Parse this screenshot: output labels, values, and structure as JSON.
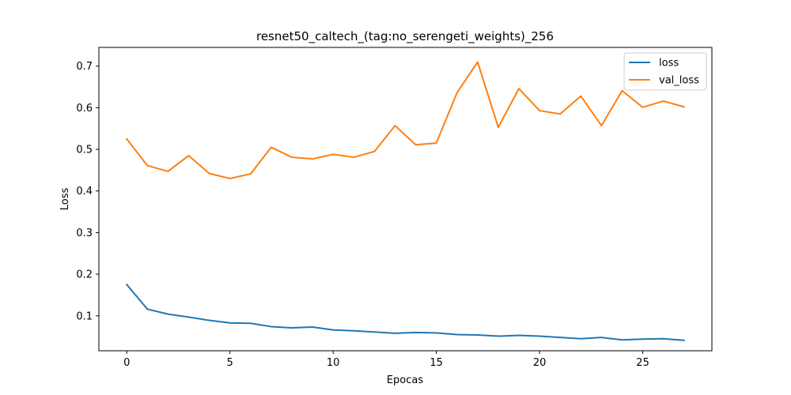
{
  "chart_data": {
    "type": "line",
    "title": "resnet50_caltech_(tag:no_serengeti_weights)_256",
    "xlabel": "Epocas",
    "ylabel": "Loss",
    "xlim": [
      -1.35,
      28.35
    ],
    "ylim": [
      0.016,
      0.745
    ],
    "xticks": [
      0,
      5,
      10,
      15,
      20,
      25
    ],
    "yticks": [
      0.1,
      0.2,
      0.3,
      0.4,
      0.5,
      0.6,
      0.7
    ],
    "grid": false,
    "legend_position": "top-right",
    "x": [
      0,
      1,
      2,
      3,
      4,
      5,
      6,
      7,
      8,
      9,
      10,
      11,
      12,
      13,
      14,
      15,
      16,
      17,
      18,
      19,
      20,
      21,
      22,
      23,
      24,
      25,
      26,
      27
    ],
    "series": [
      {
        "name": "loss",
        "color": "#1f77b4",
        "values": [
          0.175,
          0.116,
          0.104,
          0.097,
          0.089,
          0.083,
          0.082,
          0.074,
          0.071,
          0.073,
          0.066,
          0.064,
          0.061,
          0.058,
          0.06,
          0.059,
          0.055,
          0.054,
          0.051,
          0.053,
          0.051,
          0.048,
          0.045,
          0.048,
          0.042,
          0.044,
          0.045,
          0.041
        ]
      },
      {
        "name": "val_loss",
        "color": "#ff7f0e",
        "values": [
          0.525,
          0.461,
          0.447,
          0.485,
          0.442,
          0.43,
          0.441,
          0.505,
          0.481,
          0.477,
          0.488,
          0.481,
          0.495,
          0.557,
          0.511,
          0.515,
          0.636,
          0.71,
          0.553,
          0.646,
          0.593,
          0.585,
          0.628,
          0.557,
          0.641,
          0.601,
          0.616,
          0.602
        ]
      }
    ]
  }
}
